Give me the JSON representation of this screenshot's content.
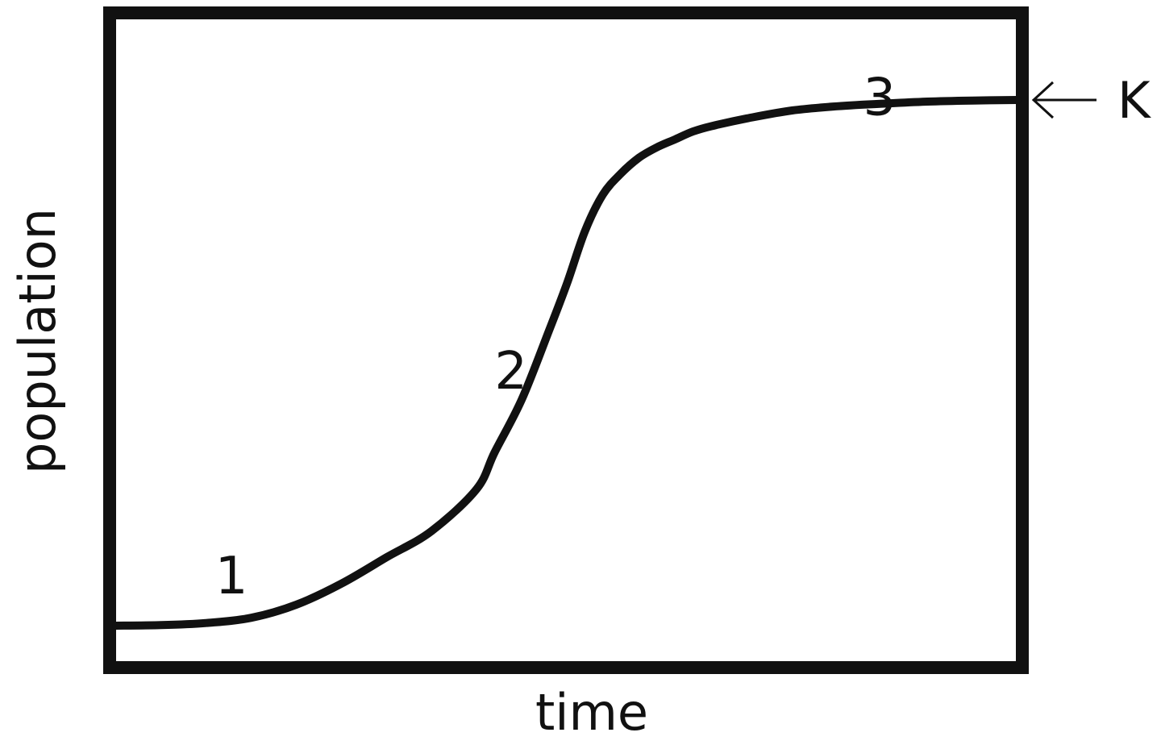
{
  "chart_data": {
    "type": "line",
    "title": "",
    "xlabel": "time",
    "ylabel": "population",
    "xlim": [
      0,
      100
    ],
    "ylim": [
      0,
      100
    ],
    "grid": false,
    "legend": "none",
    "series": [
      {
        "x": [
          0,
          5,
          10,
          15,
          20,
          25,
          30,
          35,
          40,
          42,
          45,
          48,
          50,
          52,
          54,
          56,
          58,
          60,
          62,
          64,
          66,
          70,
          75,
          80,
          85,
          90,
          95,
          100
        ],
        "y": [
          0,
          0.1,
          0.5,
          1.5,
          4,
          8,
          13,
          18,
          26,
          33,
          43,
          56,
          65,
          75,
          82,
          86,
          89,
          91,
          92.5,
          94,
          95,
          96.5,
          98,
          98.8,
          99.3,
          99.7,
          99.9,
          100
        ]
      }
    ],
    "annotations": [
      {
        "text": "1",
        "x": 12.8,
        "y": 9.5
      },
      {
        "text": "2",
        "x": 43.8,
        "y": 48.5
      },
      {
        "text": "3",
        "x": 84.7,
        "y": 100.5
      }
    ],
    "reference_line": {
      "label": "K",
      "y": 100,
      "side": "right"
    }
  },
  "colors": {
    "line": "#111111",
    "frame": "#111111",
    "background": "#ffffff"
  }
}
